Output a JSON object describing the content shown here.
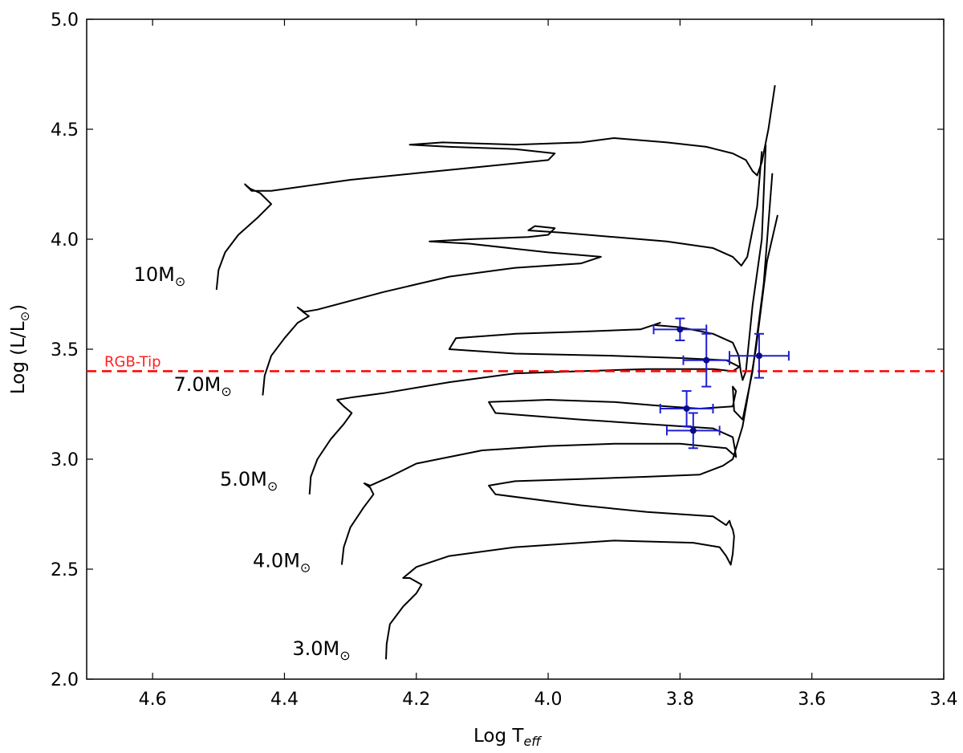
{
  "chart_data": {
    "type": "line",
    "title": "",
    "xlabel": "Log T",
    "xlabel_sub": "eff",
    "ylabel": "Log (L/L",
    "ylabel_close": ")",
    "xlim": [
      4.7,
      3.4
    ],
    "ylim": [
      2.0,
      5.0
    ],
    "x_inverted": true,
    "xticks": [
      4.6,
      4.4,
      4.2,
      4.0,
      3.8,
      3.6,
      3.4
    ],
    "xtick_labels": [
      "4.6",
      "4.4",
      "4.2",
      "4.0",
      "3.8",
      "3.6",
      "3.4"
    ],
    "yticks": [
      2.0,
      2.5,
      3.0,
      3.5,
      4.0,
      4.5,
      5.0
    ],
    "ytick_labels": [
      "2.0",
      "2.5",
      "3.0",
      "3.5",
      "4.0",
      "4.5",
      "5.0"
    ],
    "grid": false,
    "reference_line": {
      "label": "RGB-Tip",
      "y": 3.4,
      "color": "#ff0000",
      "style": "dashed"
    },
    "series": [
      {
        "name": "10M",
        "label_text": "10M",
        "label_pos": [
          4.55,
          3.81
        ],
        "points": [
          [
            4.503,
            3.77
          ],
          [
            4.5,
            3.86
          ],
          [
            4.49,
            3.94
          ],
          [
            4.47,
            4.02
          ],
          [
            4.44,
            4.1
          ],
          [
            4.42,
            4.16
          ],
          [
            4.437,
            4.21
          ],
          [
            4.452,
            4.23
          ],
          [
            4.46,
            4.25
          ],
          [
            4.45,
            4.22
          ],
          [
            4.42,
            4.22
          ],
          [
            4.3,
            4.27
          ],
          [
            4.2,
            4.3
          ],
          [
            4.1,
            4.33
          ],
          [
            4.0,
            4.36
          ],
          [
            3.99,
            4.39
          ],
          [
            4.05,
            4.41
          ],
          [
            4.15,
            4.42
          ],
          [
            4.21,
            4.43
          ],
          [
            4.16,
            4.44
          ],
          [
            4.05,
            4.43
          ],
          [
            3.95,
            4.44
          ],
          [
            3.9,
            4.46
          ],
          [
            3.82,
            4.44
          ],
          [
            3.76,
            4.42
          ],
          [
            3.72,
            4.39
          ],
          [
            3.7,
            4.36
          ],
          [
            3.69,
            4.31
          ],
          [
            3.683,
            4.29
          ],
          [
            3.676,
            4.35
          ],
          [
            3.666,
            4.5
          ],
          [
            3.656,
            4.7
          ]
        ]
      },
      {
        "name": "7.0M",
        "label_text": "7.0M",
        "label_pos": [
          4.48,
          3.31
        ],
        "points": [
          [
            4.433,
            3.29
          ],
          [
            4.43,
            3.38
          ],
          [
            4.42,
            3.47
          ],
          [
            4.4,
            3.55
          ],
          [
            4.38,
            3.62
          ],
          [
            4.363,
            3.65
          ],
          [
            4.372,
            3.67
          ],
          [
            4.38,
            3.69
          ],
          [
            4.37,
            3.67
          ],
          [
            4.35,
            3.68
          ],
          [
            4.25,
            3.76
          ],
          [
            4.15,
            3.83
          ],
          [
            4.05,
            3.87
          ],
          [
            3.95,
            3.89
          ],
          [
            3.92,
            3.92
          ],
          [
            4.0,
            3.94
          ],
          [
            4.12,
            3.98
          ],
          [
            4.18,
            3.99
          ],
          [
            4.12,
            4.0
          ],
          [
            4.03,
            4.01
          ],
          [
            4.0,
            4.02
          ],
          [
            3.99,
            4.05
          ],
          [
            4.02,
            4.06
          ],
          [
            4.03,
            4.04
          ],
          [
            3.98,
            4.03
          ],
          [
            3.9,
            4.01
          ],
          [
            3.82,
            3.99
          ],
          [
            3.75,
            3.96
          ],
          [
            3.72,
            3.92
          ],
          [
            3.707,
            3.88
          ],
          [
            3.698,
            3.92
          ],
          [
            3.683,
            4.15
          ],
          [
            3.676,
            4.4
          ]
        ]
      },
      {
        "name": "5.0M",
        "label_text": "5.0M",
        "label_pos": [
          4.41,
          2.88
        ],
        "points": [
          [
            4.362,
            2.84
          ],
          [
            4.36,
            2.92
          ],
          [
            4.35,
            3.0
          ],
          [
            4.33,
            3.09
          ],
          [
            4.31,
            3.16
          ],
          [
            4.298,
            3.21
          ],
          [
            4.31,
            3.24
          ],
          [
            4.32,
            3.27
          ],
          [
            4.3,
            3.28
          ],
          [
            4.25,
            3.3
          ],
          [
            4.15,
            3.35
          ],
          [
            4.05,
            3.39
          ],
          [
            3.95,
            3.4
          ],
          [
            3.85,
            3.41
          ],
          [
            3.75,
            3.41
          ],
          [
            3.72,
            3.4
          ],
          [
            3.71,
            3.42
          ],
          [
            3.73,
            3.45
          ],
          [
            3.8,
            3.46
          ],
          [
            3.9,
            3.47
          ],
          [
            4.05,
            3.48
          ],
          [
            4.15,
            3.5
          ],
          [
            4.14,
            3.55
          ],
          [
            4.05,
            3.57
          ],
          [
            3.95,
            3.58
          ],
          [
            3.86,
            3.59
          ],
          [
            3.83,
            3.62
          ],
          [
            3.84,
            3.61
          ],
          [
            3.8,
            3.6
          ],
          [
            3.75,
            3.57
          ],
          [
            3.72,
            3.53
          ],
          [
            3.711,
            3.47
          ],
          [
            3.708,
            3.4
          ],
          [
            3.705,
            3.36
          ],
          [
            3.7,
            3.4
          ],
          [
            3.69,
            3.7
          ],
          [
            3.676,
            4.0
          ],
          [
            3.67,
            4.43
          ]
        ]
      },
      {
        "name": "4.0M",
        "label_text": "4.0M",
        "label_pos": [
          4.36,
          2.51
        ],
        "points": [
          [
            4.313,
            2.52
          ],
          [
            4.31,
            2.6
          ],
          [
            4.3,
            2.69
          ],
          [
            4.28,
            2.78
          ],
          [
            4.265,
            2.84
          ],
          [
            4.27,
            2.87
          ],
          [
            4.279,
            2.89
          ],
          [
            4.27,
            2.88
          ],
          [
            4.24,
            2.92
          ],
          [
            4.2,
            2.98
          ],
          [
            4.1,
            3.04
          ],
          [
            4.0,
            3.06
          ],
          [
            3.9,
            3.07
          ],
          [
            3.8,
            3.07
          ],
          [
            3.73,
            3.05
          ],
          [
            3.715,
            3.01
          ],
          [
            3.717,
            3.05
          ],
          [
            3.72,
            3.1
          ],
          [
            3.75,
            3.14
          ],
          [
            3.85,
            3.16
          ],
          [
            3.95,
            3.18
          ],
          [
            4.08,
            3.21
          ],
          [
            4.09,
            3.26
          ],
          [
            4.0,
            3.27
          ],
          [
            3.9,
            3.26
          ],
          [
            3.82,
            3.24
          ],
          [
            3.77,
            3.23
          ],
          [
            3.72,
            3.24
          ],
          [
            3.715,
            3.31
          ],
          [
            3.72,
            3.33
          ],
          [
            3.718,
            3.22
          ],
          [
            3.705,
            3.18
          ],
          [
            3.69,
            3.4
          ],
          [
            3.673,
            3.8
          ],
          [
            3.66,
            4.3
          ]
        ]
      },
      {
        "name": "3.0M",
        "label_text": "3.0M",
        "label_pos": [
          4.3,
          2.11
        ],
        "points": [
          [
            4.246,
            2.09
          ],
          [
            4.245,
            2.16
          ],
          [
            4.24,
            2.25
          ],
          [
            4.22,
            2.33
          ],
          [
            4.2,
            2.39
          ],
          [
            4.192,
            2.43
          ],
          [
            4.21,
            2.46
          ],
          [
            4.22,
            2.46
          ],
          [
            4.2,
            2.51
          ],
          [
            4.15,
            2.56
          ],
          [
            4.05,
            2.6
          ],
          [
            3.9,
            2.63
          ],
          [
            3.78,
            2.62
          ],
          [
            3.74,
            2.6
          ],
          [
            3.73,
            2.56
          ],
          [
            3.723,
            2.52
          ],
          [
            3.72,
            2.57
          ],
          [
            3.718,
            2.65
          ],
          [
            3.72,
            2.68
          ],
          [
            3.723,
            2.7
          ],
          [
            3.725,
            2.72
          ],
          [
            3.73,
            2.7
          ],
          [
            3.75,
            2.74
          ],
          [
            3.85,
            2.76
          ],
          [
            3.95,
            2.79
          ],
          [
            4.08,
            2.84
          ],
          [
            4.09,
            2.88
          ],
          [
            4.05,
            2.9
          ],
          [
            3.95,
            2.91
          ],
          [
            3.85,
            2.92
          ],
          [
            3.77,
            2.93
          ],
          [
            3.735,
            2.97
          ],
          [
            3.725,
            2.99
          ],
          [
            3.72,
            3.0
          ],
          [
            3.705,
            3.15
          ],
          [
            3.685,
            3.5
          ],
          [
            3.668,
            3.9
          ],
          [
            3.652,
            4.11
          ]
        ]
      }
    ],
    "observations": [
      {
        "x": 3.8,
        "y": 3.59,
        "xerr": 0.04,
        "yerr": 0.05
      },
      {
        "x": 3.76,
        "y": 3.45,
        "xerr": 0.035,
        "yerr": 0.12
      },
      {
        "x": 3.68,
        "y": 3.47,
        "xerr": 0.045,
        "yerr": 0.1
      },
      {
        "x": 3.79,
        "y": 3.23,
        "xerr": 0.04,
        "yerr": 0.08
      },
      {
        "x": 3.78,
        "y": 3.13,
        "xerr": 0.04,
        "yerr": 0.08
      }
    ],
    "sun_symbol": "⊙"
  }
}
